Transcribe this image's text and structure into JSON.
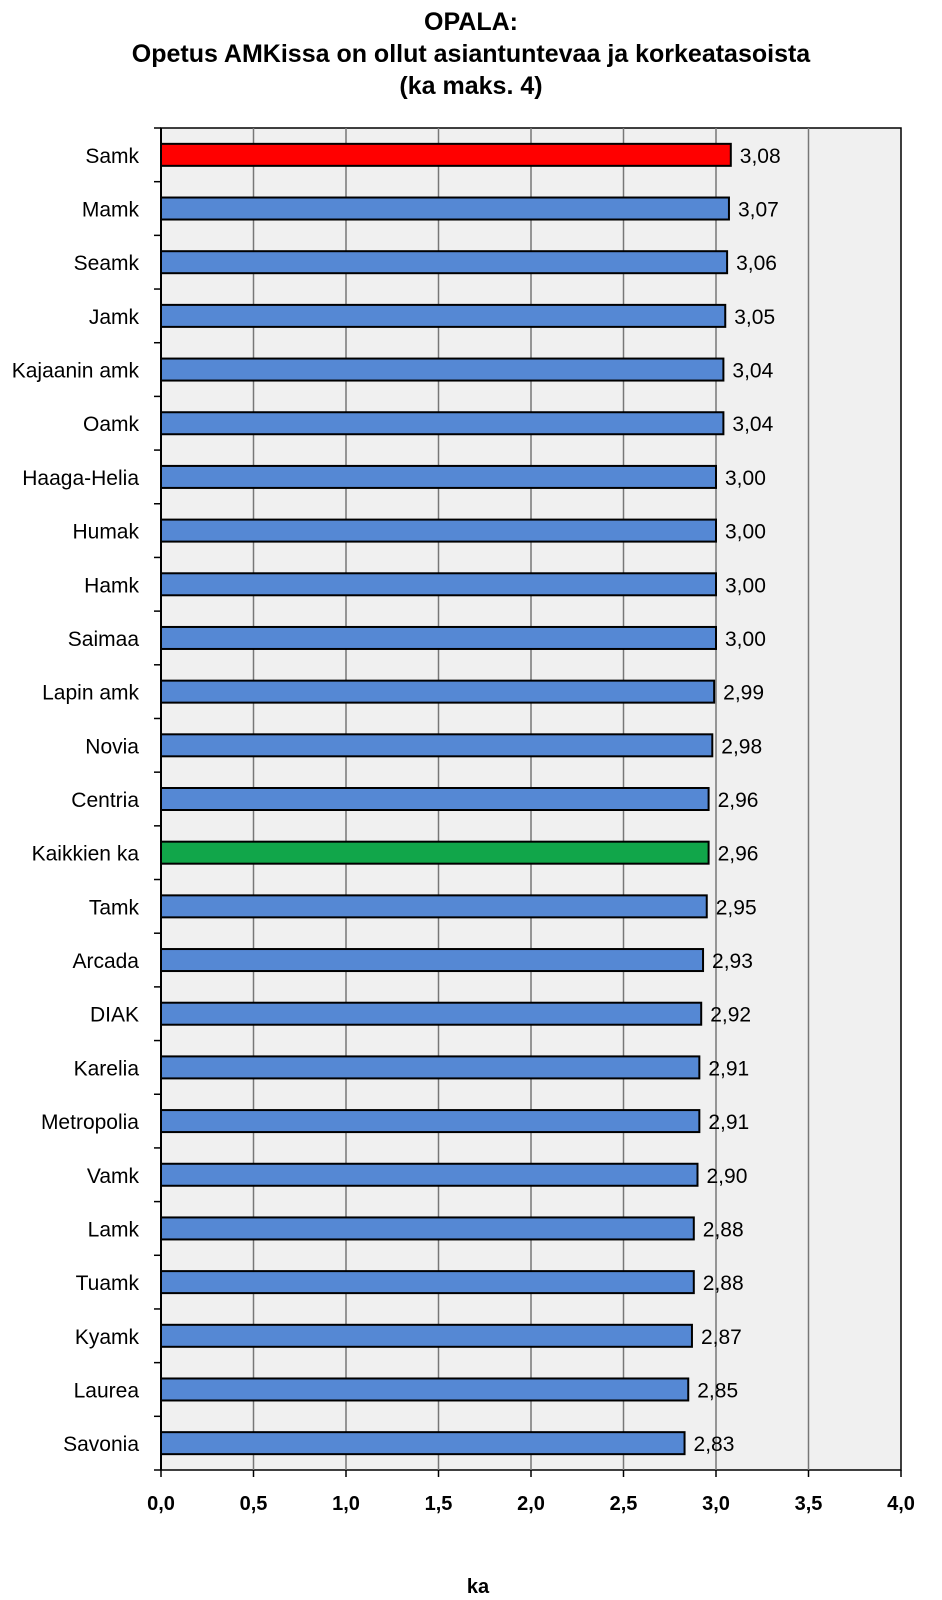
{
  "title": {
    "line1": "OPALA:",
    "line2": "Opetus AMKissa on ollut asiantuntevaa ja korkeatasoista",
    "line3": "(ka maks. 4)"
  },
  "colors": {
    "default_bar": "#5588d4",
    "highlight_bar": "#ff0000",
    "average_bar": "#11a64a",
    "plot_background": "#f0f0f0",
    "grid": "#777777"
  },
  "chart_data": {
    "type": "bar",
    "orientation": "horizontal",
    "categories": [
      "Samk",
      "Mamk",
      "Seamk",
      "Jamk",
      "Kajaanin amk",
      "Oamk",
      "Haaga-Helia",
      "Humak",
      "Hamk",
      "Saimaa",
      "Lapin amk",
      "Novia",
      "Centria",
      "Kaikkien ka",
      "Tamk",
      "Arcada",
      "DIAK",
      "Karelia",
      "Metropolia",
      "Vamk",
      "Lamk",
      "Tuamk",
      "Kyamk",
      "Laurea",
      "Savonia"
    ],
    "values": [
      3.08,
      3.07,
      3.06,
      3.05,
      3.04,
      3.04,
      3.0,
      3.0,
      3.0,
      3.0,
      2.99,
      2.98,
      2.96,
      2.96,
      2.95,
      2.93,
      2.92,
      2.91,
      2.91,
      2.9,
      2.88,
      2.88,
      2.87,
      2.85,
      2.83
    ],
    "value_labels": [
      "3,08",
      "3,07",
      "3,06",
      "3,05",
      "3,04",
      "3,04",
      "3,00",
      "3,00",
      "3,00",
      "3,00",
      "2,99",
      "2,98",
      "2,96",
      "2,96",
      "2,95",
      "2,93",
      "2,92",
      "2,91",
      "2,91",
      "2,90",
      "2,88",
      "2,88",
      "2,87",
      "2,85",
      "2,83"
    ],
    "bar_colors": [
      "highlight",
      "default",
      "default",
      "default",
      "default",
      "default",
      "default",
      "default",
      "default",
      "default",
      "default",
      "default",
      "default",
      "average",
      "default",
      "default",
      "default",
      "default",
      "default",
      "default",
      "default",
      "default",
      "default",
      "default",
      "default"
    ],
    "xlim": [
      0,
      4
    ],
    "x_ticks": [
      0,
      0.5,
      1,
      1.5,
      2,
      2.5,
      3,
      3.5,
      4
    ],
    "x_tick_labels": [
      "0,0",
      "0,5",
      "1,0",
      "1,5",
      "2,0",
      "2,5",
      "3,0",
      "3,5",
      "4,0"
    ],
    "xlabel": "ka",
    "ylabel": "",
    "grid": true
  }
}
